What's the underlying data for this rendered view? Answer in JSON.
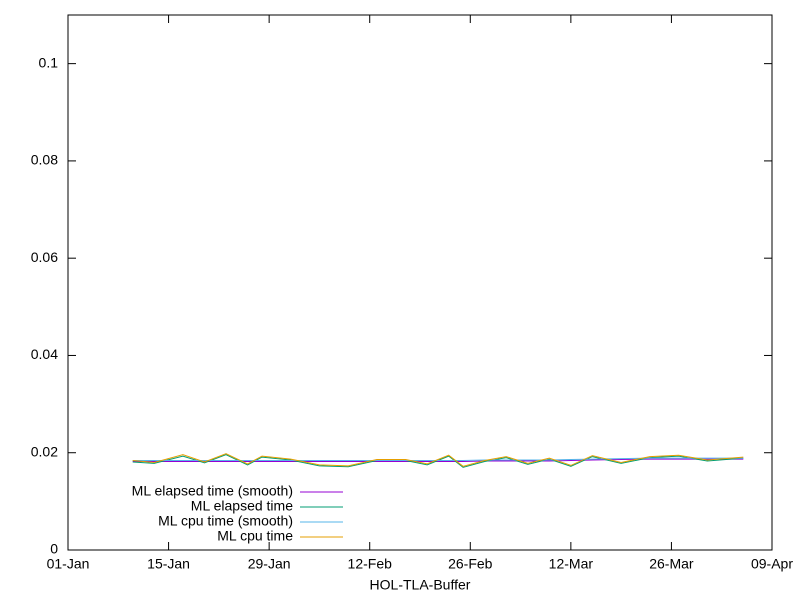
{
  "chart_data": {
    "type": "line",
    "xlabel": "HOL-TLA-Buffer",
    "x": [
      "10-Jan",
      "13-Jan",
      "17-Jan",
      "20-Jan",
      "23-Jan",
      "26-Jan",
      "28-Jan",
      "01-Feb",
      "05-Feb",
      "09-Feb",
      "13-Feb",
      "17-Feb",
      "20-Feb",
      "23-Feb",
      "25-Feb",
      "28-Feb",
      "03-Mar",
      "06-Mar",
      "09-Mar",
      "12-Mar",
      "15-Mar",
      "19-Mar",
      "23-Mar",
      "27-Mar",
      "31-Mar",
      "05-Apr"
    ],
    "series": [
      {
        "name": "ML elapsed time (smooth)",
        "color": "#9400d3",
        "values": [
          0.0182,
          0.0182,
          0.0182,
          0.0182,
          0.0182,
          0.0182,
          0.0182,
          0.0182,
          0.0182,
          0.0182,
          0.0182,
          0.0182,
          0.0182,
          0.0182,
          0.0182,
          0.0183,
          0.0183,
          0.0183,
          0.0183,
          0.0184,
          0.0185,
          0.0186,
          0.0187,
          0.0187,
          0.0187,
          0.0187
        ]
      },
      {
        "name": "ML elapsed time",
        "color": "#009e73",
        "values": [
          0.0181,
          0.0178,
          0.0193,
          0.0179,
          0.0196,
          0.0175,
          0.0191,
          0.0185,
          0.0173,
          0.0171,
          0.0184,
          0.0184,
          0.0175,
          0.0193,
          0.017,
          0.0182,
          0.019,
          0.0176,
          0.0187,
          0.0172,
          0.0192,
          0.0178,
          0.019,
          0.0193,
          0.0183,
          0.0189
        ]
      },
      {
        "name": "ML cpu time (smooth)",
        "color": "#56b4e9",
        "values": [
          0.0184,
          0.0184,
          0.0184,
          0.0184,
          0.0184,
          0.0184,
          0.0184,
          0.0184,
          0.0184,
          0.0184,
          0.0184,
          0.0184,
          0.0184,
          0.0184,
          0.0184,
          0.0185,
          0.0185,
          0.0185,
          0.0185,
          0.0186,
          0.0187,
          0.0188,
          0.0189,
          0.0189,
          0.0189,
          0.0189
        ]
      },
      {
        "name": "ML cpu time",
        "color": "#e69f00",
        "values": [
          0.0184,
          0.018,
          0.0196,
          0.0181,
          0.0198,
          0.0177,
          0.0193,
          0.0187,
          0.0175,
          0.0173,
          0.0186,
          0.0186,
          0.0177,
          0.0195,
          0.0172,
          0.0184,
          0.0192,
          0.0178,
          0.0189,
          0.0174,
          0.0194,
          0.018,
          0.0192,
          0.0195,
          0.0185,
          0.0191
        ]
      }
    ],
    "xlim": [
      "01-Jan",
      "09-Apr"
    ],
    "xticks": [
      "01-Jan",
      "15-Jan",
      "29-Jan",
      "12-Feb",
      "26-Feb",
      "12-Mar",
      "26-Mar",
      "09-Apr"
    ],
    "ylim": [
      0,
      0.11
    ],
    "yticks": [
      0,
      0.02,
      0.04,
      0.06,
      0.08,
      0.1
    ],
    "legend": "bottom-left"
  }
}
